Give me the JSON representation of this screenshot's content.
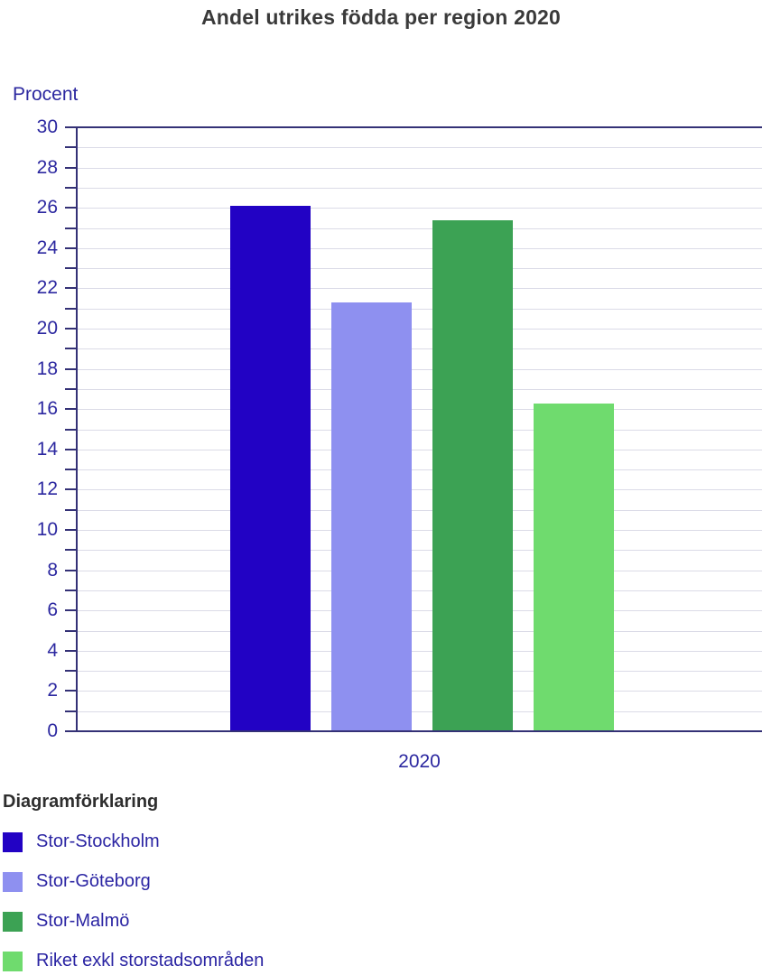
{
  "chart_data": {
    "type": "bar",
    "title": "Andel utrikes födda per region 2020",
    "xlabel": "2020",
    "ylabel": "Procent",
    "categories": [
      "2020"
    ],
    "series": [
      {
        "name": "Stor-Stockholm",
        "values": [
          26.1
        ],
        "color": "#2202C4"
      },
      {
        "name": "Stor-Göteborg",
        "values": [
          21.3
        ],
        "color": "#8E90F0"
      },
      {
        "name": "Stor-Malmö",
        "values": [
          25.4
        ],
        "color": "#3CA254"
      },
      {
        "name": "Riket exkl storstadsområden",
        "values": [
          16.3
        ],
        "color": "#6FDB6E"
      }
    ],
    "ylim": [
      0,
      30
    ],
    "tick_step": 1,
    "label_step": 2,
    "grid": true,
    "legend_position": "bottom",
    "legend_title": "Diagramförklaring"
  },
  "colors": {
    "axis_line": "#343176",
    "axis_text": "#2C28A0",
    "gridline": "#DBDBE7",
    "title_text": "#3A3A3A",
    "legend_title_text": "#2E2E2E",
    "legend_label_text": "#2B25A3"
  }
}
